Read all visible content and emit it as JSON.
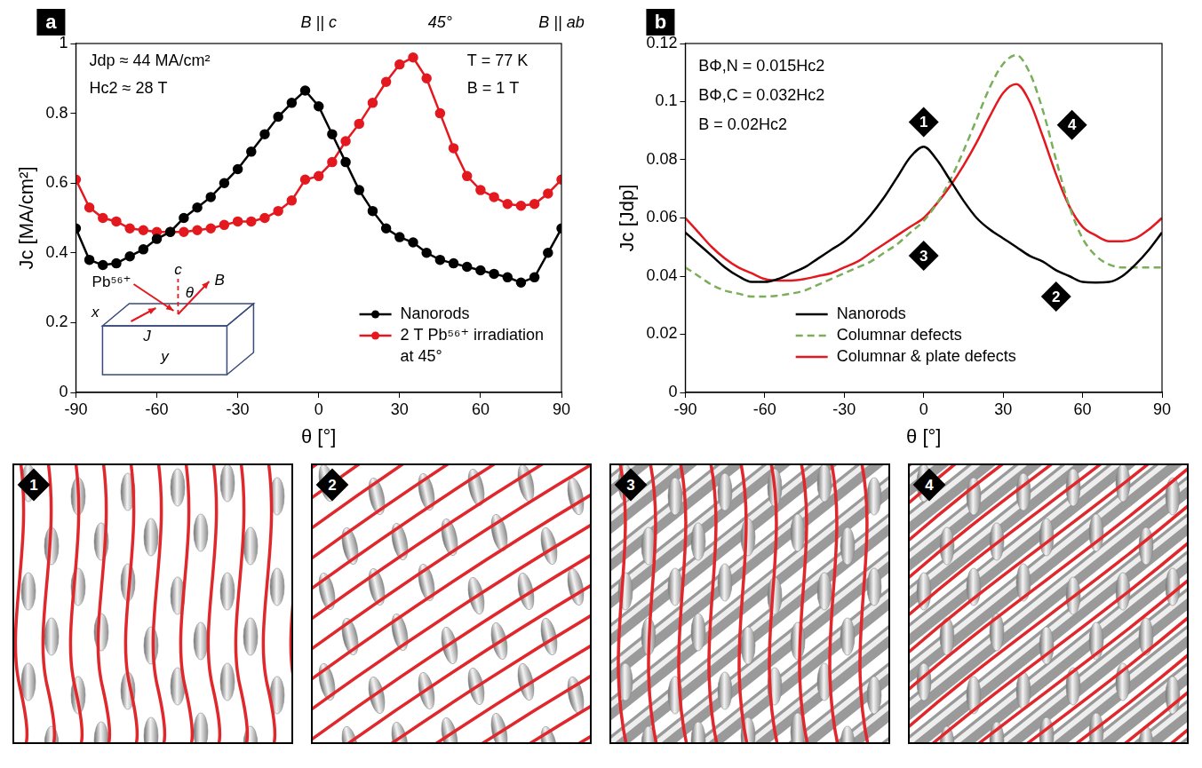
{
  "chart_data": [
    {
      "type": "line",
      "label": "a",
      "xlabel": "θ [°]",
      "ylabel": "Jc [MA/cm²]",
      "x": [
        -90,
        -85,
        -80,
        -75,
        -70,
        -65,
        -60,
        -55,
        -50,
        -45,
        -40,
        -35,
        -30,
        -25,
        -20,
        -15,
        -10,
        -5,
        0,
        5,
        10,
        15,
        20,
        25,
        30,
        35,
        40,
        45,
        50,
        55,
        60,
        65,
        70,
        75,
        80,
        85,
        90
      ],
      "series": [
        {
          "name": "Nanorods",
          "color": "#000000",
          "marker": "circle",
          "values": [
            0.47,
            0.38,
            0.365,
            0.37,
            0.39,
            0.41,
            0.44,
            0.46,
            0.5,
            0.53,
            0.56,
            0.6,
            0.64,
            0.69,
            0.74,
            0.79,
            0.83,
            0.865,
            0.82,
            0.74,
            0.66,
            0.58,
            0.52,
            0.47,
            0.445,
            0.43,
            0.4,
            0.38,
            0.37,
            0.36,
            0.35,
            0.34,
            0.33,
            0.315,
            0.33,
            0.4,
            0.47
          ]
        },
        {
          "name": "2 T Pb⁵⁶⁺ irradiation at 45°",
          "color": "#e3191f",
          "marker": "circle",
          "values": [
            0.61,
            0.53,
            0.5,
            0.49,
            0.47,
            0.465,
            0.46,
            0.46,
            0.46,
            0.465,
            0.47,
            0.48,
            0.49,
            0.49,
            0.5,
            0.52,
            0.55,
            0.61,
            0.62,
            0.66,
            0.72,
            0.77,
            0.83,
            0.89,
            0.94,
            0.96,
            0.9,
            0.8,
            0.7,
            0.62,
            0.58,
            0.56,
            0.54,
            0.535,
            0.54,
            0.57,
            0.61
          ]
        }
      ],
      "xlim": [
        -90,
        90
      ],
      "xticks": [
        -90,
        -60,
        -30,
        0,
        30,
        60,
        90
      ],
      "ylim": [
        0,
        1
      ],
      "yticks": [
        0,
        0.2,
        0.4,
        0.6,
        0.8,
        1
      ],
      "grid": false,
      "legend": "lower right",
      "axis_marks": [
        {
          "text": "B || c",
          "x": 0
        },
        {
          "text": "45°",
          "x": 45
        },
        {
          "text": "B || ab",
          "x": 90
        }
      ],
      "annotations": [
        {
          "text": "Jdp ≈ 44 MA/cm²",
          "x": -85,
          "y": 0.95
        },
        {
          "text": "Hc2 ≈ 28 T",
          "x": -85,
          "y": 0.87
        },
        {
          "text": "T = 77 K",
          "x": 55,
          "y": 0.95
        },
        {
          "text": "B = 1 T",
          "x": 55,
          "y": 0.87
        }
      ],
      "inset": {
        "x": "x",
        "y": "y",
        "current": "J",
        "ion": "Pb⁵⁶⁺",
        "axis": "c",
        "angle": "θ",
        "field": "B"
      }
    },
    {
      "type": "line",
      "label": "b",
      "xlabel": "θ [°]",
      "ylabel": "Jc [Jdp]",
      "x": [
        -90,
        -85,
        -80,
        -75,
        -70,
        -65,
        -60,
        -55,
        -50,
        -45,
        -40,
        -35,
        -30,
        -25,
        -20,
        -15,
        -10,
        -5,
        0,
        5,
        10,
        15,
        20,
        25,
        30,
        35,
        40,
        45,
        50,
        55,
        60,
        65,
        70,
        75,
        80,
        85,
        90
      ],
      "series": [
        {
          "name": "Nanorods",
          "color": "#000000",
          "line_style": "solid",
          "values": [
            0.055,
            0.051,
            0.047,
            0.043,
            0.04,
            0.038,
            0.038,
            0.039,
            0.041,
            0.043,
            0.046,
            0.049,
            0.052,
            0.056,
            0.061,
            0.067,
            0.074,
            0.081,
            0.0845,
            0.08,
            0.073,
            0.066,
            0.06,
            0.056,
            0.053,
            0.05,
            0.047,
            0.045,
            0.042,
            0.04,
            0.038,
            0.0378,
            0.038,
            0.04,
            0.044,
            0.049,
            0.055
          ]
        },
        {
          "name": "Columnar defects",
          "color": "#7aae5a",
          "line_style": "dashed",
          "values": [
            0.043,
            0.04,
            0.037,
            0.035,
            0.034,
            0.033,
            0.033,
            0.0333,
            0.034,
            0.035,
            0.037,
            0.039,
            0.041,
            0.043,
            0.045,
            0.048,
            0.051,
            0.055,
            0.059,
            0.065,
            0.073,
            0.083,
            0.094,
            0.105,
            0.113,
            0.116,
            0.11,
            0.097,
            0.08,
            0.064,
            0.053,
            0.047,
            0.044,
            0.043,
            0.043,
            0.043,
            0.043
          ]
        },
        {
          "name": "Columnar & plate defects",
          "color": "#e3191f",
          "line_style": "solid",
          "values": [
            0.06,
            0.055,
            0.05,
            0.046,
            0.043,
            0.041,
            0.039,
            0.0385,
            0.0385,
            0.039,
            0.04,
            0.041,
            0.043,
            0.045,
            0.048,
            0.051,
            0.054,
            0.057,
            0.06,
            0.065,
            0.071,
            0.078,
            0.086,
            0.095,
            0.103,
            0.106,
            0.1,
            0.088,
            0.075,
            0.064,
            0.057,
            0.054,
            0.052,
            0.052,
            0.053,
            0.056,
            0.06
          ]
        }
      ],
      "xlim": [
        -90,
        90
      ],
      "xticks": [
        -90,
        -60,
        -30,
        0,
        30,
        60,
        90
      ],
      "ylim": [
        0,
        0.12
      ],
      "yticks": [
        0,
        0.02,
        0.04,
        0.06,
        0.08,
        0.1,
        0.12
      ],
      "grid": false,
      "legend": "lower center",
      "annotations": [
        {
          "text": "BΦ,N = 0.015Hc2",
          "x": -85,
          "y": 0.112
        },
        {
          "text": "BΦ,C = 0.032Hc2",
          "x": -85,
          "y": 0.102
        },
        {
          "text": "B = 0.02Hc2",
          "x": -85,
          "y": 0.092
        },
        {
          "text": "1",
          "x": 0,
          "y": 0.093,
          "marker": "diamond"
        },
        {
          "text": "2",
          "x": 50,
          "y": 0.033,
          "marker": "diamond"
        },
        {
          "text": "3",
          "x": 0,
          "y": 0.047,
          "marker": "diamond"
        },
        {
          "text": "4",
          "x": 56,
          "y": 0.092,
          "marker": "diamond"
        }
      ]
    }
  ],
  "illustrations": [
    {
      "label": "1"
    },
    {
      "label": "2"
    },
    {
      "label": "3"
    },
    {
      "label": "4"
    }
  ]
}
